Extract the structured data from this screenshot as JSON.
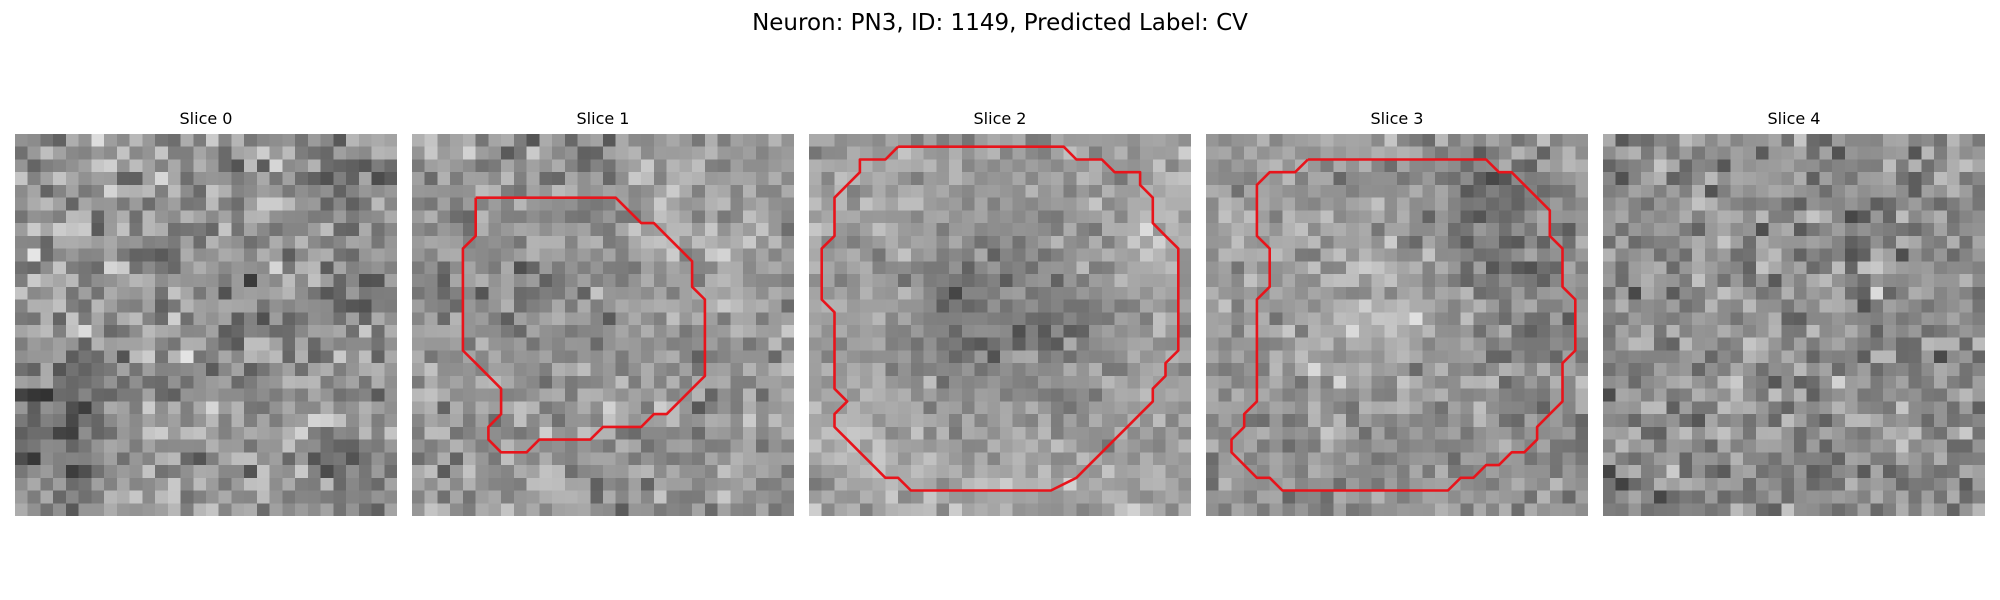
{
  "figure": {
    "title": "Neuron: PN3, ID: 1149, Predicted Label: CV"
  },
  "contour_color": "#e8141b",
  "slices": [
    {
      "title": "Slice 0",
      "has_roi_contour": false
    },
    {
      "title": "Slice 1",
      "has_roi_contour": true
    },
    {
      "title": "Slice 2",
      "has_roi_contour": true
    },
    {
      "title": "Slice 3",
      "has_roi_contour": true
    },
    {
      "title": "Slice 4",
      "has_roi_contour": false
    }
  ]
}
